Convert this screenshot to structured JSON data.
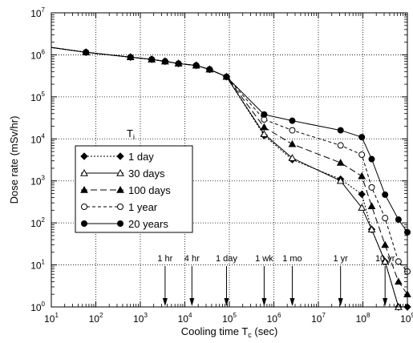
{
  "chart_data": {
    "type": "line",
    "title": "",
    "xlabel": "Cooling time T",
    "xlabel_sub": "c",
    "xlabel_unit": " (sec)",
    "ylabel": "Dose rate (mSv/hr)",
    "xscale": "log",
    "yscale": "log",
    "xlim": [
      10,
      1000000000
    ],
    "ylim": [
      1,
      10000000
    ],
    "grid": true,
    "x_ticks": [
      {
        "base": "10",
        "exp": "1"
      },
      {
        "base": "10",
        "exp": "2"
      },
      {
        "base": "10",
        "exp": "3"
      },
      {
        "base": "10",
        "exp": "4"
      },
      {
        "base": "10",
        "exp": "5"
      },
      {
        "base": "10",
        "exp": "6"
      },
      {
        "base": "10",
        "exp": "7"
      },
      {
        "base": "10",
        "exp": "8"
      },
      {
        "base": "10",
        "exp": "9"
      }
    ],
    "y_ticks": [
      {
        "base": "10",
        "exp": "0"
      },
      {
        "base": "10",
        "exp": "1"
      },
      {
        "base": "10",
        "exp": "2"
      },
      {
        "base": "10",
        "exp": "3"
      },
      {
        "base": "10",
        "exp": "4"
      },
      {
        "base": "10",
        "exp": "5"
      },
      {
        "base": "10",
        "exp": "6"
      },
      {
        "base": "10",
        "exp": "7"
      }
    ],
    "legend_title": "T",
    "legend_title_sub": "i",
    "legend_position": "left",
    "series": [
      {
        "name": "1 day",
        "marker": "diamond-filled",
        "dash": "2,2",
        "x": [
          10,
          60,
          600,
          1800,
          3600,
          7200,
          18000,
          36000,
          86400,
          604800,
          2592000,
          31536000,
          94608000,
          157680000,
          315360000,
          630720000,
          1000000000
        ],
        "y": [
          1500000,
          1150000,
          880000,
          780000,
          700000,
          620000,
          560000,
          450000,
          300000,
          12000,
          3200,
          1100,
          480,
          70,
          12,
          1,
          1
        ]
      },
      {
        "name": "30 days",
        "marker": "triangle-open",
        "dash": "",
        "x": [
          10,
          60,
          600,
          1800,
          3600,
          7200,
          18000,
          36000,
          86400,
          604800,
          2592000,
          31536000,
          94608000,
          157680000,
          315360000,
          630720000
        ],
        "y": [
          1500000,
          1150000,
          880000,
          780000,
          700000,
          620000,
          560000,
          450000,
          300000,
          13000,
          3500,
          1000,
          230,
          70,
          12,
          1
        ]
      },
      {
        "name": "100 days",
        "marker": "triangle-filled",
        "dash": "8,4",
        "x": [
          10,
          60,
          600,
          1800,
          3600,
          7200,
          18000,
          36000,
          86400,
          604800,
          2592000,
          31536000,
          94608000,
          157680000,
          315360000,
          630720000,
          1000000000
        ],
        "y": [
          1500000,
          1150000,
          880000,
          780000,
          700000,
          620000,
          560000,
          450000,
          300000,
          19000,
          7500,
          2700,
          1300,
          250,
          30,
          4,
          2
        ]
      },
      {
        "name": "1 year",
        "marker": "circle-open",
        "dash": "4,3",
        "x": [
          10,
          60,
          600,
          1800,
          3600,
          7200,
          18000,
          36000,
          86400,
          604800,
          2592000,
          31536000,
          94608000,
          157680000,
          315360000,
          630720000,
          1000000000
        ],
        "y": [
          1500000,
          1150000,
          880000,
          780000,
          700000,
          620000,
          560000,
          450000,
          300000,
          29000,
          16000,
          7000,
          4200,
          700,
          130,
          12,
          7
        ]
      },
      {
        "name": "20 years",
        "marker": "circle-filled",
        "dash": "",
        "x": [
          10,
          60,
          600,
          1800,
          3600,
          7200,
          18000,
          36000,
          86400,
          604800,
          2592000,
          31536000,
          94608000,
          157680000,
          315360000,
          630720000,
          1000000000
        ],
        "y": [
          1500000,
          1150000,
          880000,
          780000,
          700000,
          620000,
          560000,
          450000,
          300000,
          38000,
          27000,
          16000,
          11000,
          3300,
          470,
          120,
          60
        ]
      }
    ],
    "annotations": [
      {
        "label": "1 hr",
        "x": 3600
      },
      {
        "label": "4 hr",
        "x": 14400
      },
      {
        "label": "1 day",
        "x": 86400
      },
      {
        "label": "1 wk",
        "x": 604800
      },
      {
        "label": "1 mo",
        "x": 2592000
      },
      {
        "label": "1 yr",
        "x": 31536000
      },
      {
        "label": "10 yr",
        "x": 315360000
      }
    ]
  }
}
